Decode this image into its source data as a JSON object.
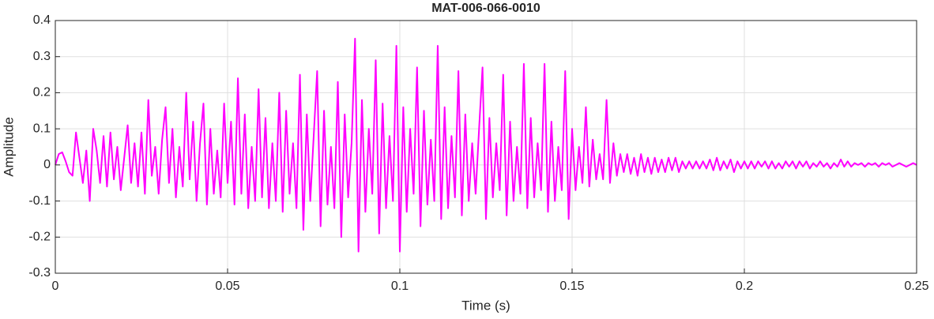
{
  "chart_data": {
    "type": "line",
    "title": "MAT-006-066-0010",
    "xlabel": "Time (s)",
    "ylabel": "Amplitude",
    "xlim": [
      0,
      0.25
    ],
    "ylim": [
      -0.3,
      0.4
    ],
    "xticks": [
      0,
      0.05,
      0.1,
      0.15,
      0.2,
      0.25
    ],
    "yticks": [
      -0.3,
      -0.2,
      -0.1,
      0,
      0.1,
      0.2,
      0.3,
      0.4
    ],
    "grid": true,
    "x": [
      0,
      0.001,
      0.002,
      0.003,
      0.004,
      0.005,
      0.006,
      0.007,
      0.008,
      0.009,
      0.01,
      0.011,
      0.012,
      0.013,
      0.014,
      0.015,
      0.016,
      0.017,
      0.018,
      0.019,
      0.02,
      0.021,
      0.022,
      0.023,
      0.024,
      0.025,
      0.026,
      0.027,
      0.028,
      0.029,
      0.03,
      0.031,
      0.032,
      0.033,
      0.034,
      0.035,
      0.036,
      0.037,
      0.038,
      0.039,
      0.04,
      0.041,
      0.042,
      0.043,
      0.044,
      0.045,
      0.046,
      0.047,
      0.048,
      0.049,
      0.05,
      0.051,
      0.052,
      0.053,
      0.054,
      0.055,
      0.056,
      0.057,
      0.058,
      0.059,
      0.06,
      0.061,
      0.062,
      0.063,
      0.064,
      0.065,
      0.066,
      0.067,
      0.068,
      0.069,
      0.07,
      0.071,
      0.072,
      0.073,
      0.074,
      0.075,
      0.076,
      0.077,
      0.078,
      0.079,
      0.08,
      0.081,
      0.082,
      0.083,
      0.084,
      0.085,
      0.086,
      0.087,
      0.088,
      0.089,
      0.09,
      0.091,
      0.092,
      0.093,
      0.094,
      0.095,
      0.096,
      0.097,
      0.098,
      0.099,
      0.1,
      0.101,
      0.102,
      0.103,
      0.104,
      0.105,
      0.106,
      0.107,
      0.108,
      0.109,
      0.11,
      0.111,
      0.112,
      0.113,
      0.114,
      0.115,
      0.116,
      0.117,
      0.118,
      0.119,
      0.12,
      0.121,
      0.122,
      0.123,
      0.124,
      0.125,
      0.126,
      0.127,
      0.128,
      0.129,
      0.13,
      0.131,
      0.132,
      0.133,
      0.134,
      0.135,
      0.136,
      0.137,
      0.138,
      0.139,
      0.14,
      0.141,
      0.142,
      0.143,
      0.144,
      0.145,
      0.146,
      0.147,
      0.148,
      0.149,
      0.15,
      0.151,
      0.152,
      0.153,
      0.154,
      0.155,
      0.156,
      0.157,
      0.158,
      0.159,
      0.16,
      0.161,
      0.162,
      0.163,
      0.164,
      0.165,
      0.166,
      0.167,
      0.168,
      0.169,
      0.17,
      0.171,
      0.172,
      0.173,
      0.174,
      0.175,
      0.176,
      0.177,
      0.178,
      0.179,
      0.18,
      0.181,
      0.182,
      0.183,
      0.184,
      0.185,
      0.186,
      0.187,
      0.188,
      0.189,
      0.19,
      0.191,
      0.192,
      0.193,
      0.194,
      0.195,
      0.196,
      0.197,
      0.198,
      0.199,
      0.2,
      0.201,
      0.202,
      0.203,
      0.204,
      0.205,
      0.206,
      0.207,
      0.208,
      0.209,
      0.21,
      0.211,
      0.212,
      0.213,
      0.214,
      0.215,
      0.216,
      0.217,
      0.218,
      0.219,
      0.22,
      0.221,
      0.222,
      0.223,
      0.224,
      0.225,
      0.226,
      0.227,
      0.228,
      0.229,
      0.23,
      0.231,
      0.232,
      0.233,
      0.234,
      0.235,
      0.236,
      0.237,
      0.238,
      0.239,
      0.24,
      0.241,
      0.242,
      0.243,
      0.244,
      0.245,
      0.246,
      0.247,
      0.248,
      0.249,
      0.25
    ],
    "series": [
      {
        "color": "#ff00ff",
        "values": [
          0,
          0.03,
          0.035,
          0.01,
          -0.02,
          -0.03,
          0.09,
          0.02,
          -0.05,
          0.04,
          -0.1,
          0.1,
          0.04,
          -0.05,
          0.08,
          -0.06,
          0.09,
          -0.04,
          0.05,
          -0.07,
          0.02,
          0.11,
          -0.05,
          0.06,
          -0.06,
          0.09,
          -0.08,
          0.18,
          -0.03,
          0.05,
          -0.08,
          0.07,
          0.16,
          -0.05,
          0.1,
          -0.09,
          0.05,
          -0.06,
          0.2,
          -0.04,
          0.12,
          -0.1,
          0.06,
          0.17,
          -0.11,
          0.1,
          -0.08,
          0.04,
          -0.09,
          0.17,
          -0.05,
          0.12,
          -0.11,
          0.24,
          -0.08,
          0.14,
          -0.12,
          0.05,
          -0.1,
          0.21,
          -0.09,
          0.13,
          -0.12,
          0.06,
          -0.1,
          0.2,
          -0.13,
          0.15,
          -0.08,
          0.06,
          -0.12,
          0.25,
          -0.18,
          0.14,
          -0.1,
          0.08,
          0.26,
          -0.17,
          0.15,
          -0.11,
          0.05,
          -0.12,
          0.23,
          -0.2,
          0.14,
          -0.09,
          0.06,
          0.35,
          -0.24,
          0.18,
          -0.13,
          0.1,
          -0.08,
          0.29,
          -0.19,
          0.17,
          -0.12,
          0.08,
          -0.1,
          0.33,
          -0.24,
          0.16,
          -0.13,
          0.1,
          -0.08,
          0.27,
          -0.17,
          0.15,
          -0.11,
          0.07,
          -0.1,
          0.33,
          -0.15,
          0.16,
          -0.12,
          0.08,
          -0.09,
          0.26,
          -0.14,
          0.14,
          -0.1,
          0.06,
          -0.08,
          0.1,
          0.27,
          -0.15,
          0.13,
          -0.09,
          0.06,
          -0.07,
          0.25,
          -0.14,
          0.12,
          -0.1,
          0.05,
          -0.08,
          0.28,
          -0.12,
          0.13,
          -0.09,
          0.06,
          -0.07,
          0.28,
          -0.13,
          0.12,
          -0.1,
          0.05,
          -0.07,
          0.26,
          -0.15,
          0.1,
          -0.07,
          0.05,
          -0.05,
          0.16,
          -0.06,
          0.07,
          -0.04,
          0.03,
          -0.04,
          0.18,
          -0.05,
          0.06,
          -0.03,
          0.03,
          -0.02,
          0.03,
          -0.025,
          0.02,
          -0.03,
          0.03,
          -0.02,
          0.02,
          -0.025,
          0.02,
          -0.02,
          0.015,
          -0.02,
          0.02,
          -0.015,
          0.02,
          -0.02,
          0.01,
          -0.01,
          0.01,
          -0.01,
          0.01,
          -0.01,
          0.01,
          -0.01,
          0.015,
          -0.015,
          0.02,
          -0.015,
          0.01,
          -0.01,
          0.015,
          -0.02,
          0.01,
          -0.01,
          0.01,
          -0.01,
          0.01,
          -0.01,
          0.01,
          -0.005,
          0.01,
          -0.01,
          0.01,
          -0.01,
          0.005,
          -0.01,
          0.01,
          -0.005,
          0.01,
          -0.01,
          0.01,
          -0.005,
          0.01,
          -0.01,
          0.005,
          -0.005,
          0.01,
          -0.005,
          0.005,
          -0.01,
          0.005,
          -0.005,
          0.015,
          -0.005,
          0.01,
          -0.005,
          0.005,
          0,
          0.005,
          -0.005,
          0.005,
          0,
          0.005,
          -0.005,
          0.005,
          0,
          0.005,
          -0.005,
          0,
          0.005,
          0,
          -0.005,
          0,
          0.005,
          0
        ]
      }
    ]
  }
}
